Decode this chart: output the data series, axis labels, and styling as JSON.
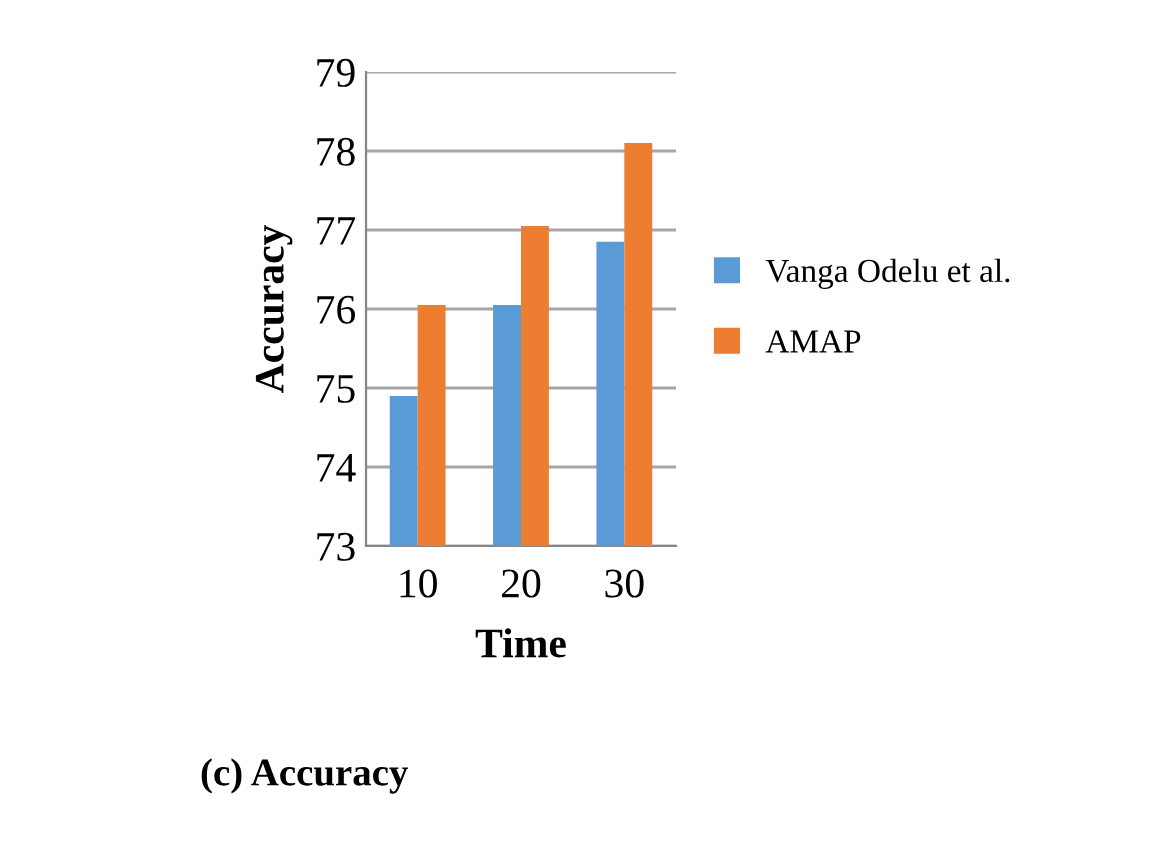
{
  "chart_data": {
    "type": "bar",
    "xlabel": "Time",
    "ylabel": "Accuracy",
    "categories": [
      "10",
      "20",
      "30"
    ],
    "series": [
      {
        "name": "Vanga Odelu et al.",
        "color": "#5b9bd5",
        "values": [
          74.9,
          76.05,
          76.85
        ]
      },
      {
        "name": "AMAP",
        "color": "#ed7d31",
        "values": [
          76.05,
          77.05,
          78.1
        ]
      }
    ],
    "ylim": [
      73,
      79
    ],
    "yticks": [
      73,
      74,
      75,
      76,
      77,
      78,
      79
    ],
    "grid": "y",
    "legend": "right",
    "annotations": [
      "(c) Accuracy"
    ]
  }
}
